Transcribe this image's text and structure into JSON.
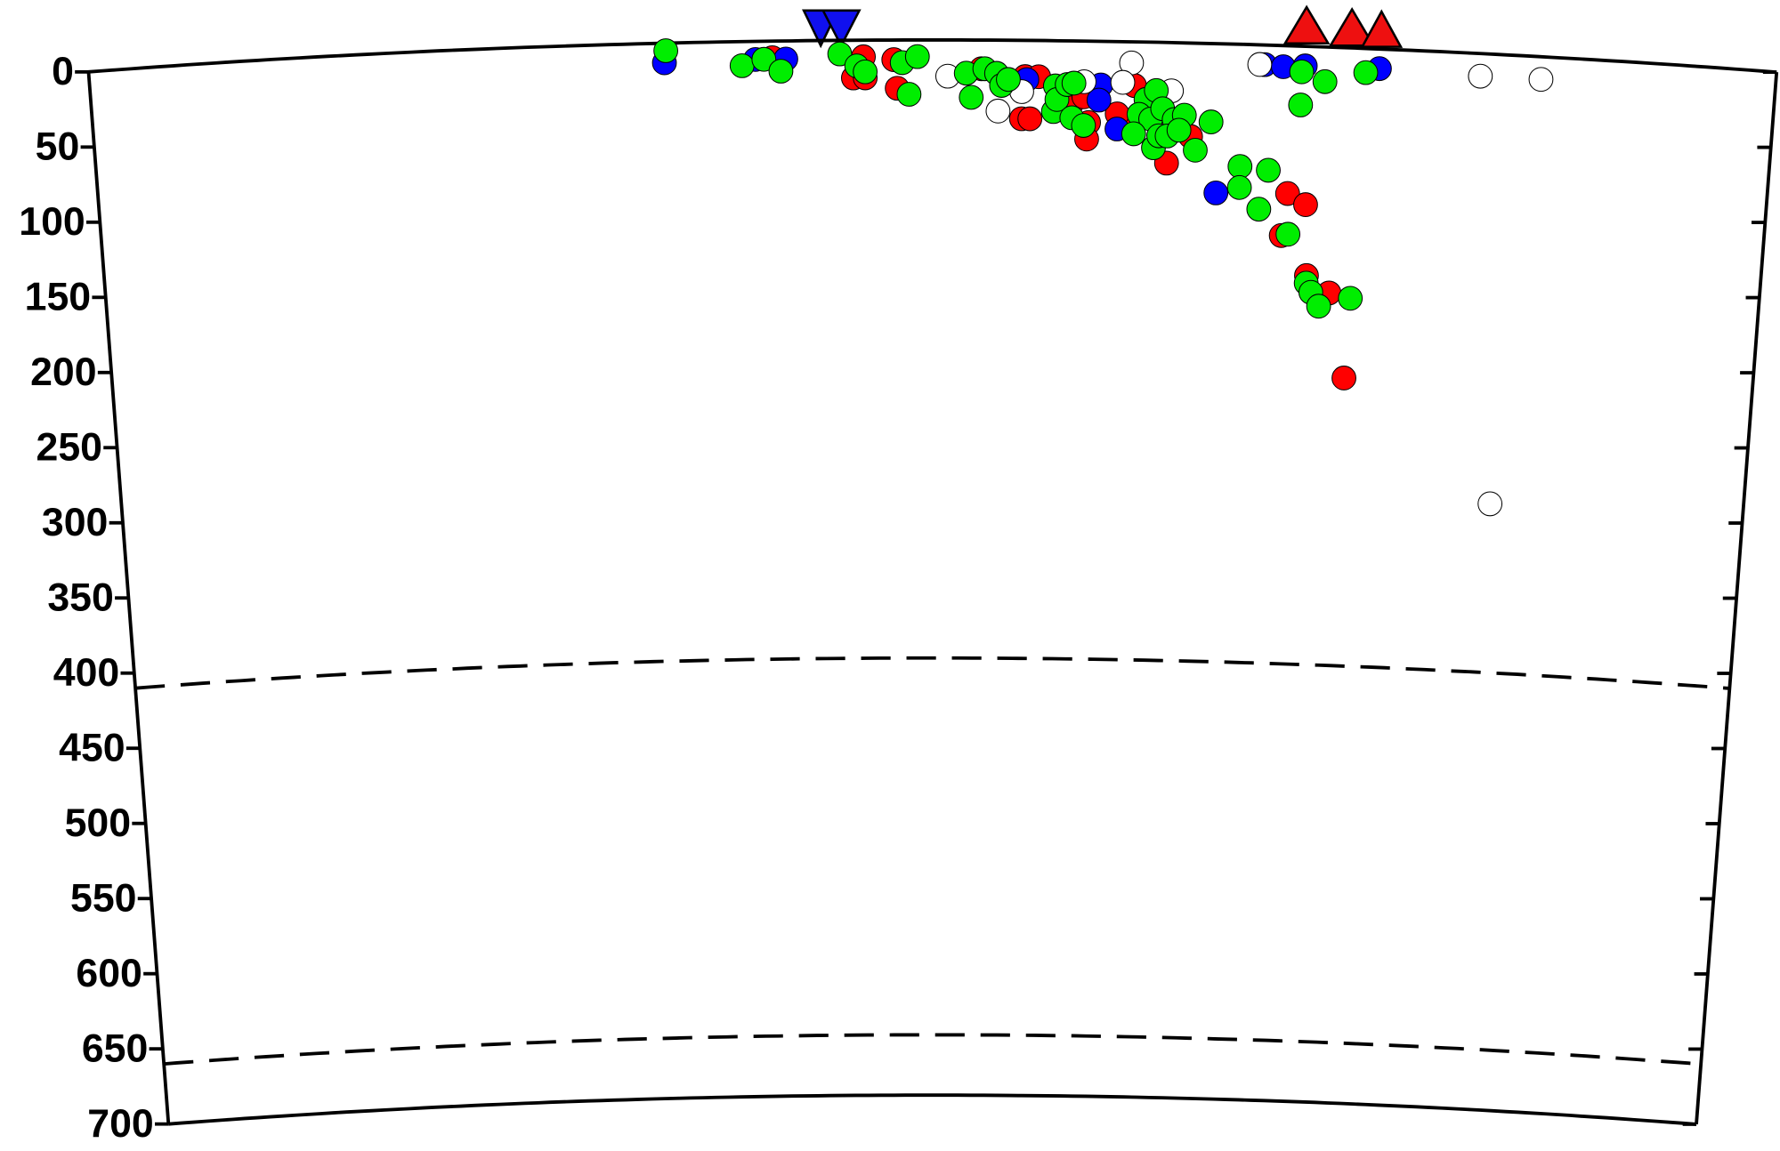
{
  "chart_data": {
    "type": "scatter",
    "ylim": [
      0,
      700
    ],
    "yticks": [
      0,
      50,
      100,
      150,
      200,
      250,
      300,
      350,
      400,
      450,
      500,
      550,
      600,
      650,
      700
    ],
    "xlim": [
      0,
      1
    ],
    "dashed_depths": [
      410,
      660
    ],
    "series": [
      {
        "color": "#ff0000",
        "x": [
          0.405,
          0.459,
          0.453,
          0.46,
          0.477,
          0.479,
          0.529,
          0.555,
          0.563,
          0.553,
          0.558,
          0.583,
          0.59,
          0.593,
          0.592,
          0.615,
          0.62,
          0.61,
          0.64,
          0.654,
          0.713,
          0.724,
          0.71,
          0.726,
          0.74,
          0.751
        ],
        "values": [
          11,
          11,
          25,
          25,
          13,
          32,
          19,
          24,
          24,
          52,
          52,
          41,
          37,
          54,
          65,
          52,
          29,
          48,
          80,
          62,
          98,
          105,
          126,
          152,
          163,
          219
        ]
      },
      {
        "color": "#0000ff",
        "x": [
          0.341,
          0.395,
          0.413,
          0.556,
          0.6,
          0.599,
          0.61,
          0.67,
          0.697,
          0.708,
          0.721,
          0.765
        ],
        "values": [
          13,
          12,
          12,
          26,
          29,
          39,
          58,
          99,
          13,
          14,
          13,
          13
        ]
      },
      {
        "color": "#ffffff",
        "x": [
          0.509,
          0.539,
          0.553,
          0.59,
          0.618,
          0.613,
          0.642,
          0.694,
          0.825,
          0.861,
          0.844
        ],
        "values": [
          24,
          47,
          34,
          27,
          14,
          27,
          32,
          13,
          15,
          15,
          298
        ]
      },
      {
        "color": "#00ee00",
        "x": [
          0.342,
          0.387,
          0.4,
          0.41,
          0.445,
          0.455,
          0.46,
          0.482,
          0.491,
          0.486,
          0.52,
          0.523,
          0.531,
          0.538,
          0.541,
          0.545,
          0.573,
          0.572,
          0.574,
          0.58,
          0.584,
          0.583,
          0.59,
          0.627,
          0.633,
          0.623,
          0.63,
          0.637,
          0.644,
          0.62,
          0.632,
          0.635,
          0.65,
          0.666,
          0.657,
          0.684,
          0.701,
          0.684,
          0.696,
          0.714,
          0.726,
          0.729,
          0.734,
          0.753,
          0.719,
          0.733,
          0.719,
          0.757,
          0.64,
          0.647
        ],
        "values": [
          5,
          16,
          12,
          20,
          9,
          17,
          21,
          15,
          11,
          36,
          22,
          38,
          19,
          22,
          30,
          26,
          30,
          47,
          39,
          29,
          28,
          51,
          56,
          38,
          32,
          48,
          51,
          44,
          51,
          61,
          70,
          62,
          48,
          52,
          71,
          81,
          83,
          95,
          109,
          125,
          157,
          163,
          172,
          166,
          17,
          23,
          39,
          16,
          62,
          58
        ]
      }
    ]
  }
}
